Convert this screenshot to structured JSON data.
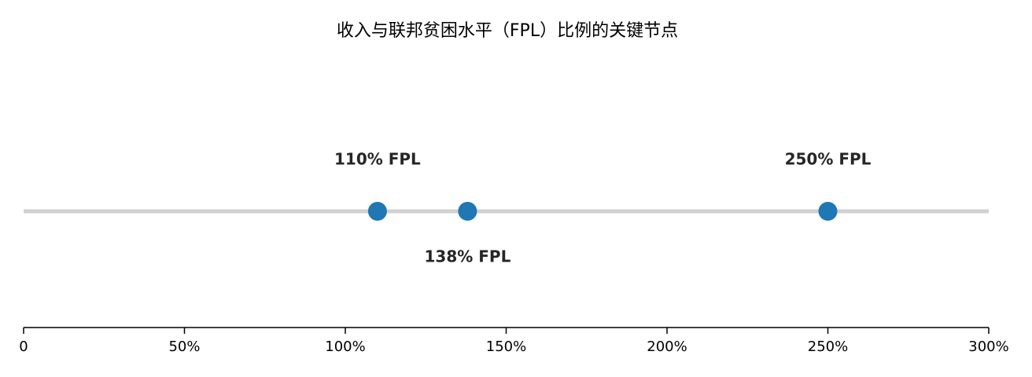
{
  "chart_data": {
    "type": "dot",
    "title": "收入与联邦贫困水平（FPL）比例的关键节点",
    "values": [
      110,
      138,
      250
    ],
    "value_labels": [
      "110% FPL",
      "138% FPL",
      "250% FPL"
    ],
    "color": "#1f77b4",
    "xlim": [
      0,
      300
    ],
    "xticks": [
      0,
      {
        "value": 50,
        "label": "50%"
      },
      {
        "value": 100,
        "label": "100%"
      },
      {
        "value": 150,
        "label": "150%"
      },
      {
        "value": 200,
        "label": "200%"
      },
      {
        "value": 250,
        "label": "250%"
      },
      {
        "value": 300,
        "label": "300%"
      }
    ]
  }
}
